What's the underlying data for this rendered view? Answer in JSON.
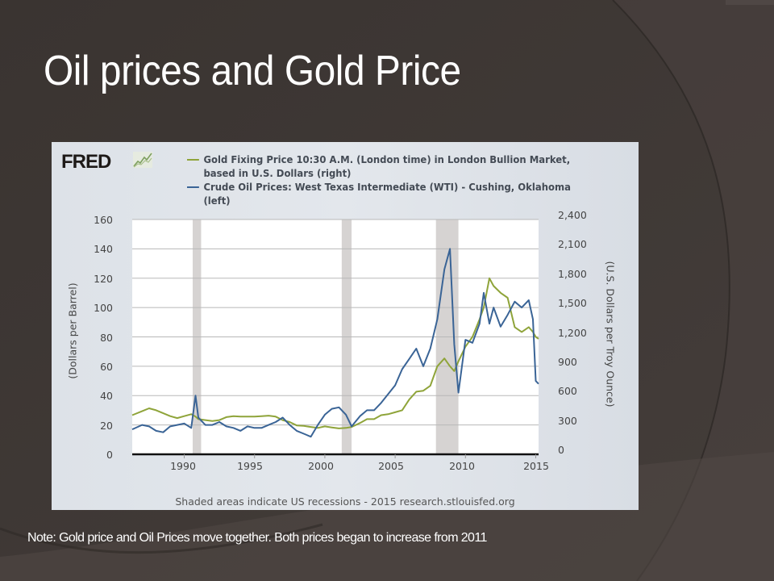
{
  "slide": {
    "title": "Oil prices and Gold Price",
    "note": "Note: Gold price and Oil Prices move together. Both prices began to increase from 2011",
    "colors": {
      "background": "#3b3532",
      "title_text": "#ffffff",
      "chart_frame": "#e0e4ea"
    }
  },
  "chart": {
    "logo": "FRED",
    "logo_icon": "chart-growth-icon",
    "legend": [
      {
        "label": "Gold Fixing Price 10:30 A.M. (London time) in London Bullion Market, based in U.S. Dollars (right)",
        "color": "#8fa43a"
      },
      {
        "label": "Crude Oil Prices: West Texas Intermediate (WTI) - Cushing, Oklahoma (left)",
        "color": "#3a6496"
      }
    ],
    "y_left_label": "(Dollars per Barrel)",
    "y_right_label": "(U.S. Dollars per Troy Ounce)",
    "y_left_ticks": [
      "0",
      "20",
      "40",
      "60",
      "80",
      "100",
      "120",
      "140",
      "160"
    ],
    "y_right_ticks": [
      "0",
      "300",
      "600",
      "900",
      "1,200",
      "1,500",
      "1,800",
      "2,100",
      "2,400"
    ],
    "x_ticks": [
      "1990",
      "1995",
      "2000",
      "2005",
      "2010",
      "2015"
    ],
    "source": "Shaded areas indicate US recessions - 2015 research.stlouisfed.org"
  },
  "chart_data": {
    "type": "line",
    "title": "",
    "xlabel": "",
    "ylabel": "(Dollars per Barrel)",
    "ylabel_right": "(U.S. Dollars per Troy Ounce)",
    "xlim": [
      1986.3,
      2015.2
    ],
    "ylim": [
      0,
      160
    ],
    "ylim_right": [
      0,
      2400
    ],
    "grid": true,
    "legend_position": "top",
    "recessions": [
      [
        1990.6,
        1991.2
      ],
      [
        2001.2,
        2001.9
      ],
      [
        2007.9,
        2009.5
      ]
    ],
    "x": [
      1986.3,
      1987.0,
      1987.5,
      1988.0,
      1988.5,
      1989.0,
      1989.5,
      1990.0,
      1990.5,
      1990.8,
      1991.0,
      1991.5,
      1992.0,
      1992.5,
      1993.0,
      1993.5,
      1994.0,
      1994.5,
      1995.0,
      1995.5,
      1996.0,
      1996.5,
      1997.0,
      1997.5,
      1998.0,
      1998.5,
      1999.0,
      1999.5,
      2000.0,
      2000.5,
      2001.0,
      2001.5,
      2001.9,
      2002.5,
      2003.0,
      2003.5,
      2004.0,
      2004.5,
      2005.0,
      2005.5,
      2006.0,
      2006.5,
      2007.0,
      2007.5,
      2008.0,
      2008.5,
      2008.9,
      2009.2,
      2009.5,
      2010.0,
      2010.5,
      2011.0,
      2011.3,
      2011.7,
      2012.0,
      2012.5,
      2013.0,
      2013.5,
      2014.0,
      2014.5,
      2014.8,
      2015.0,
      2015.2
    ],
    "series": [
      {
        "name": "Crude Oil Prices: WTI - Cushing, Oklahoma (left)",
        "axis": "left",
        "color": "#3a6496",
        "values": [
          17,
          20,
          19,
          16,
          15,
          19,
          20,
          21,
          18,
          40,
          25,
          20,
          20,
          22,
          19,
          18,
          16,
          19,
          18,
          18,
          20,
          22,
          25,
          20,
          16,
          14,
          12,
          20,
          27,
          31,
          32,
          27,
          19,
          26,
          30,
          30,
          35,
          41,
          47,
          58,
          65,
          72,
          60,
          72,
          92,
          126,
          140,
          75,
          42,
          78,
          76,
          89,
          110,
          89,
          100,
          87,
          95,
          104,
          100,
          105,
          92,
          50,
          48
        ]
      },
      {
        "name": "Gold Fixing Price 10:30 A.M. London (right)",
        "axis": "right",
        "color": "#8fa43a",
        "values": [
          400,
          440,
          470,
          450,
          420,
          390,
          370,
          390,
          410,
          385,
          360,
          350,
          340,
          350,
          380,
          390,
          385,
          385,
          385,
          390,
          395,
          385,
          350,
          330,
          295,
          290,
          280,
          270,
          285,
          275,
          265,
          270,
          280,
          320,
          360,
          360,
          400,
          410,
          430,
          450,
          560,
          640,
          650,
          700,
          900,
          980,
          900,
          850,
          950,
          1100,
          1200,
          1380,
          1500,
          1800,
          1720,
          1650,
          1600,
          1300,
          1250,
          1300,
          1250,
          1200,
          1180
        ]
      }
    ]
  }
}
